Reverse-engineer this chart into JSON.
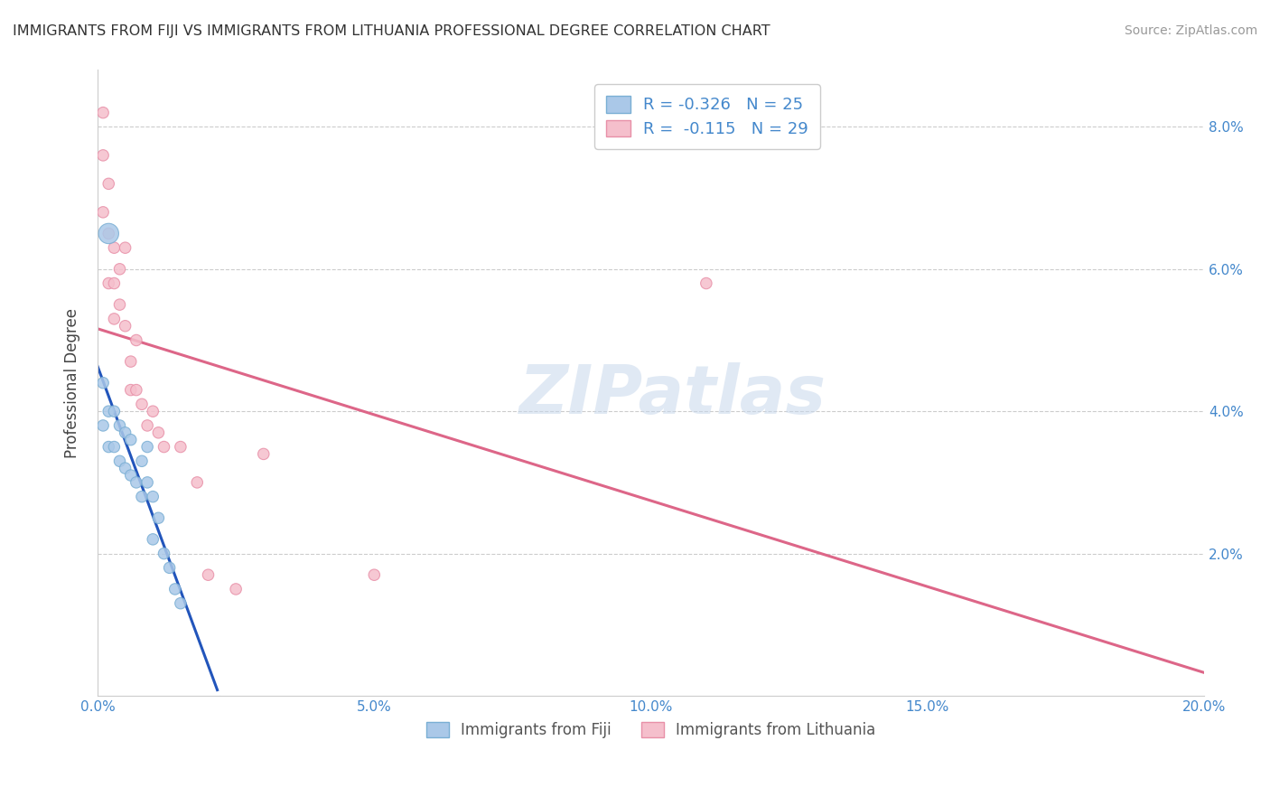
{
  "title": "IMMIGRANTS FROM FIJI VS IMMIGRANTS FROM LITHUANIA PROFESSIONAL DEGREE CORRELATION CHART",
  "source": "Source: ZipAtlas.com",
  "ylabel": "Professional Degree",
  "xlim": [
    0.0,
    0.2
  ],
  "ylim": [
    0.0,
    0.088
  ],
  "xtick_labels": [
    "0.0%",
    "5.0%",
    "10.0%",
    "15.0%",
    "20.0%"
  ],
  "xtick_values": [
    0.0,
    0.05,
    0.1,
    0.15,
    0.2
  ],
  "ytick_labels": [
    "2.0%",
    "4.0%",
    "6.0%",
    "8.0%"
  ],
  "ytick_values": [
    0.02,
    0.04,
    0.06,
    0.08
  ],
  "fiji_color": "#aac8e8",
  "fiji_edge_color": "#7aafd4",
  "lithuania_color": "#f5bfcc",
  "lithuania_edge_color": "#e890a8",
  "fiji_R": -0.326,
  "fiji_N": 25,
  "lithuania_R": -0.115,
  "lithuania_N": 29,
  "fiji_line_color": "#2255bb",
  "fiji_line_dash_color": "#aabbcc",
  "lithuania_line_color": "#dd6688",
  "watermark": "ZIPatlas",
  "fiji_x": [
    0.001,
    0.001,
    0.002,
    0.002,
    0.003,
    0.003,
    0.004,
    0.004,
    0.005,
    0.005,
    0.006,
    0.006,
    0.007,
    0.008,
    0.008,
    0.009,
    0.009,
    0.01,
    0.01,
    0.011,
    0.012,
    0.013,
    0.014,
    0.015,
    0.002
  ],
  "fiji_y": [
    0.044,
    0.038,
    0.04,
    0.035,
    0.04,
    0.035,
    0.038,
    0.033,
    0.037,
    0.032,
    0.036,
    0.031,
    0.03,
    0.033,
    0.028,
    0.035,
    0.03,
    0.028,
    0.022,
    0.025,
    0.02,
    0.018,
    0.015,
    0.013,
    0.065
  ],
  "fiji_sizes": [
    80,
    80,
    80,
    80,
    80,
    80,
    80,
    80,
    80,
    80,
    80,
    80,
    80,
    80,
    80,
    80,
    80,
    80,
    80,
    80,
    80,
    80,
    80,
    80,
    260
  ],
  "lithuania_x": [
    0.001,
    0.001,
    0.001,
    0.002,
    0.002,
    0.002,
    0.003,
    0.003,
    0.003,
    0.004,
    0.004,
    0.005,
    0.005,
    0.006,
    0.006,
    0.007,
    0.007,
    0.008,
    0.009,
    0.01,
    0.011,
    0.012,
    0.015,
    0.018,
    0.02,
    0.025,
    0.03,
    0.11,
    0.05
  ],
  "lithuania_y": [
    0.082,
    0.076,
    0.068,
    0.072,
    0.065,
    0.058,
    0.063,
    0.058,
    0.053,
    0.06,
    0.055,
    0.063,
    0.052,
    0.047,
    0.043,
    0.05,
    0.043,
    0.041,
    0.038,
    0.04,
    0.037,
    0.035,
    0.035,
    0.03,
    0.017,
    0.015,
    0.034,
    0.058,
    0.017
  ],
  "lithuania_sizes": [
    80,
    80,
    80,
    80,
    80,
    80,
    80,
    80,
    80,
    80,
    80,
    80,
    80,
    80,
    80,
    80,
    80,
    80,
    80,
    80,
    80,
    80,
    80,
    80,
    80,
    80,
    80,
    80,
    80
  ],
  "legend_label_fiji": "Immigrants from Fiji",
  "legend_label_lithuania": "Immigrants from Lithuania"
}
